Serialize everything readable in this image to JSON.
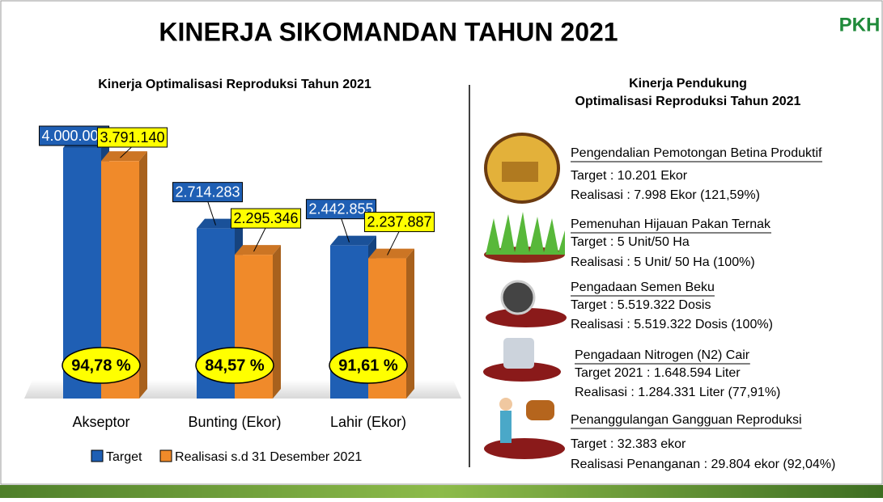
{
  "title": "KINERJA SIKOMANDAN TAHUN 2021",
  "logo": "PKH",
  "chart_data": {
    "type": "bar3d",
    "title": "Kinerja Optimalisasi Reproduksi Tahun 2021",
    "categories": [
      "Akseptor",
      "Bunting (Ekor)",
      "Lahir (Ekor)"
    ],
    "series": [
      {
        "name": "Target",
        "color": "#1f5fb4",
        "values": [
          4000000,
          2714283,
          2442855
        ],
        "value_labels": [
          "4.000.000",
          "2.714.283",
          "2.442.855"
        ]
      },
      {
        "name": "Realisasi s.d 31 Desember 2021",
        "color": "#f08a2a",
        "values": [
          3791140,
          2295346,
          2237887
        ],
        "value_labels": [
          "3.791.140",
          "2.295.346",
          "2.237.887"
        ]
      }
    ],
    "annotations": [
      "94,78 %",
      "84,57 %",
      "91,61 %"
    ],
    "legend": "bottom"
  },
  "right_panel": {
    "title_lines": [
      "Kinerja Pendukung",
      "Optimalisasi  Reproduksi Tahun 2021"
    ],
    "items": [
      {
        "heading": "Pengendalian Pemotongan Betina Produktif",
        "lines": [
          "Target : 10.201 Ekor",
          "Realisasi : 7.998 Ekor (121,59%)"
        ]
      },
      {
        "heading": "Pemenuhan Hijauan Pakan Ternak",
        "lines": [
          "Target : 5 Unit/50 Ha",
          "Realisasi : 5 Unit/ 50 Ha (100%)"
        ]
      },
      {
        "heading": "Pengadaan Semen Beku",
        "lines": [
          "Target : 5.519.322 Dosis",
          "Realisasi : 5.519.322 Dosis (100%)"
        ]
      },
      {
        "heading": "Pengadaan Nitrogen (N2) Cair",
        "lines": [
          "Target 2021 : 1.648.594 Liter",
          "Realisasi : 1.284.331 Liter (77,91%)"
        ]
      },
      {
        "heading": "Penanggulangan Gangguan Reproduksi",
        "lines": [
          "Target : 32.383 ekor",
          "Realisasi Penanganan : 29.804 ekor (92,04%)"
        ]
      }
    ]
  }
}
